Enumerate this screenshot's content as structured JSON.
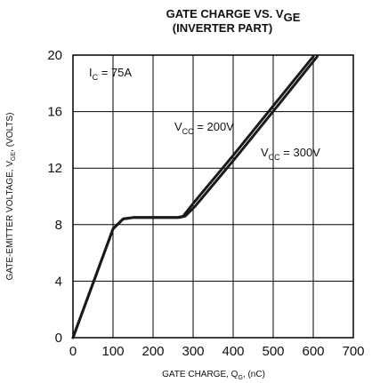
{
  "chart_data": {
    "type": "line",
    "title_line1": "GATE CHARGE VS. V",
    "title_line1_sub": "GE",
    "title_line2": "(INVERTER PART)",
    "xlabel": "GATE CHARGE, Q",
    "xlabel_sub": "G",
    "xlabel_suffix": ", (nC)",
    "ylabel": "GATE-EMITTER VOLTAGE, V",
    "ylabel_sub": "GE",
    "ylabel_suffix": ", (VOLTS)",
    "xlim": [
      0,
      700
    ],
    "ylim": [
      0,
      20
    ],
    "x_ticks": [
      0,
      100,
      200,
      300,
      400,
      500,
      600,
      700
    ],
    "y_ticks": [
      0,
      4,
      8,
      12,
      16,
      20
    ],
    "grid": true,
    "annotations": [
      {
        "main": "I",
        "sub": "C",
        "rest": " = 75A"
      },
      {
        "main": "V",
        "sub": "CC",
        "rest": " = 200V"
      },
      {
        "main": "V",
        "sub": "CC",
        "rest": " = 300V"
      }
    ],
    "series": [
      {
        "name": "VCC = 200V",
        "x": [
          0,
          100,
          125,
          150,
          260,
          275,
          300,
          400,
          500,
          600
        ],
        "y": [
          0,
          7.7,
          8.4,
          8.5,
          8.5,
          8.6,
          9.5,
          12.9,
          16.4,
          19.9
        ]
      },
      {
        "name": "VCC = 300V",
        "x": [
          0,
          100,
          125,
          150,
          265,
          280,
          305,
          405,
          505,
          610
        ],
        "y": [
          0,
          7.7,
          8.4,
          8.5,
          8.5,
          8.6,
          9.3,
          12.7,
          16.2,
          19.9
        ]
      }
    ]
  }
}
